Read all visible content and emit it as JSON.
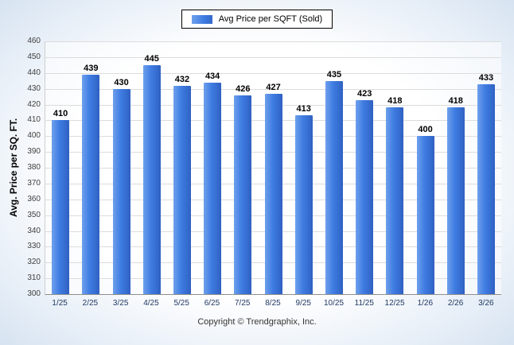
{
  "chart_data": {
    "type": "bar",
    "categories": [
      "1/25",
      "2/25",
      "3/25",
      "4/25",
      "5/25",
      "6/25",
      "7/25",
      "8/25",
      "9/25",
      "10/25",
      "11/25",
      "12/25",
      "1/26",
      "2/26",
      "3/26"
    ],
    "values": [
      410,
      439,
      430,
      445,
      432,
      434,
      426,
      427,
      413,
      435,
      423,
      418,
      400,
      418,
      433
    ],
    "legend": "Avg Price per SQFT (Sold)",
    "title": "",
    "xlabel": "",
    "ylabel": "Avg. Price per SQ. FT.",
    "ylim": [
      300,
      460
    ],
    "ytick_step": 10,
    "bar_color": "#3e7ce2",
    "grid": true,
    "legend_position": "top"
  },
  "footer": {
    "copyright": "Copyright © Trendgraphix, Inc."
  }
}
